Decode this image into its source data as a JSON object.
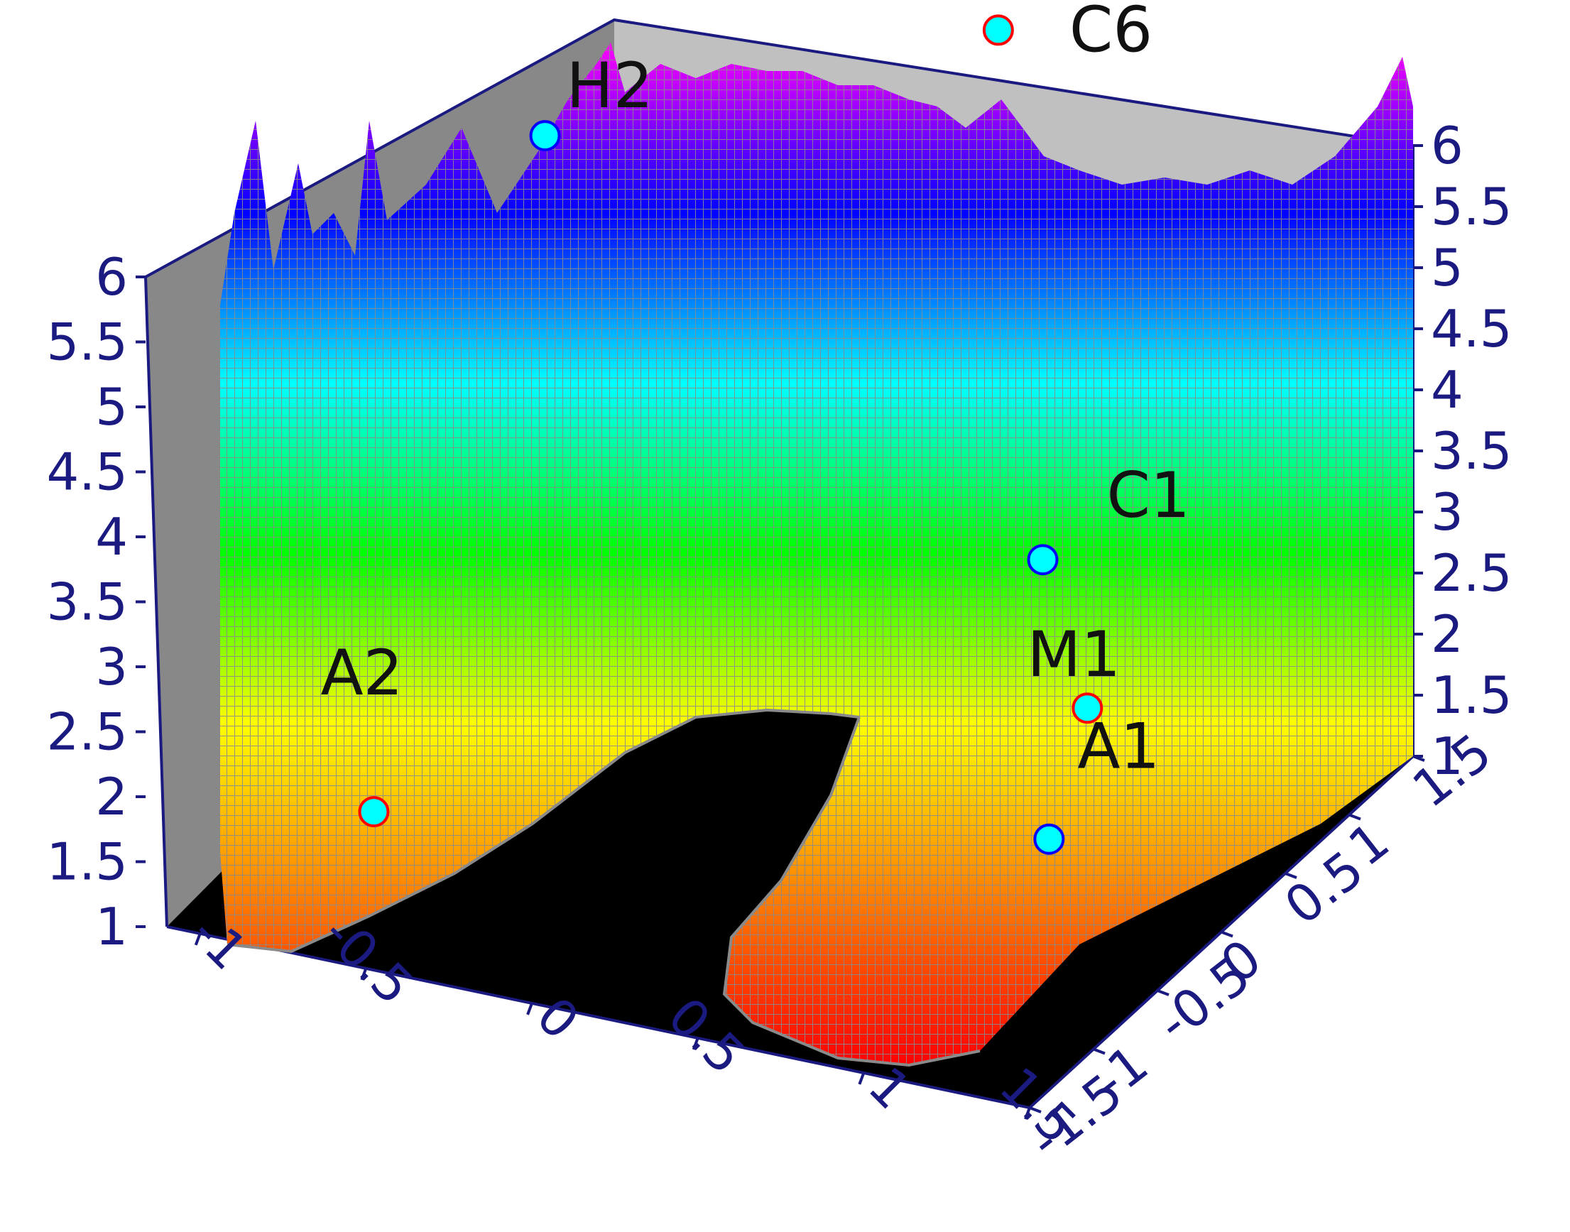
{
  "chart_data": {
    "type": "surface",
    "title": "",
    "xlabel": "",
    "ylabel": "",
    "zlabel": "",
    "x_ticks": [
      "-1",
      "-0.5",
      "0",
      "0.5",
      "1",
      "1.5"
    ],
    "y_ticks": [
      "-1.5",
      "-1",
      "-0.5",
      "0",
      "0.5",
      "1",
      "1.5"
    ],
    "z_ticks": [
      "1",
      "1.5",
      "2",
      "2.5",
      "3",
      "3.5",
      "4",
      "4.5",
      "5",
      "5.5",
      "6"
    ],
    "xlim": [
      -1.1,
      1.5
    ],
    "ylim": [
      -1.5,
      1.5
    ],
    "zlim": [
      1,
      6
    ],
    "colormap": [
      "#ff0000",
      "#ff8000",
      "#ffff00",
      "#00ff00",
      "#00ffff",
      "#0000ff",
      "#ff00ff"
    ],
    "points": [
      {
        "label": "C6",
        "x": 0.25,
        "y": 1.5,
        "z": 6.0,
        "color": "#00ffff",
        "outline": "#ff0000"
      },
      {
        "label": "H2",
        "x": -0.75,
        "y": 0.55,
        "z": 5.5,
        "color": "#00ffff",
        "outline": "#0000ff"
      },
      {
        "label": "C1",
        "x": 0.75,
        "y": 0.55,
        "z": 3.0,
        "color": "#00ffff",
        "outline": "#0000ff"
      },
      {
        "label": "M1",
        "x": 1.0,
        "y": 0.25,
        "z": 2.25,
        "color": "#00ffff",
        "outline": "#ff0000"
      },
      {
        "label": "A1",
        "x": 1.0,
        "y": -0.05,
        "z": 1.5,
        "color": "#00ffff",
        "outline": "#0000ff"
      },
      {
        "label": "A2",
        "x": -0.9,
        "y": -0.4,
        "z": 1.0,
        "color": "#00ffff",
        "outline": "#ff0000"
      }
    ]
  }
}
